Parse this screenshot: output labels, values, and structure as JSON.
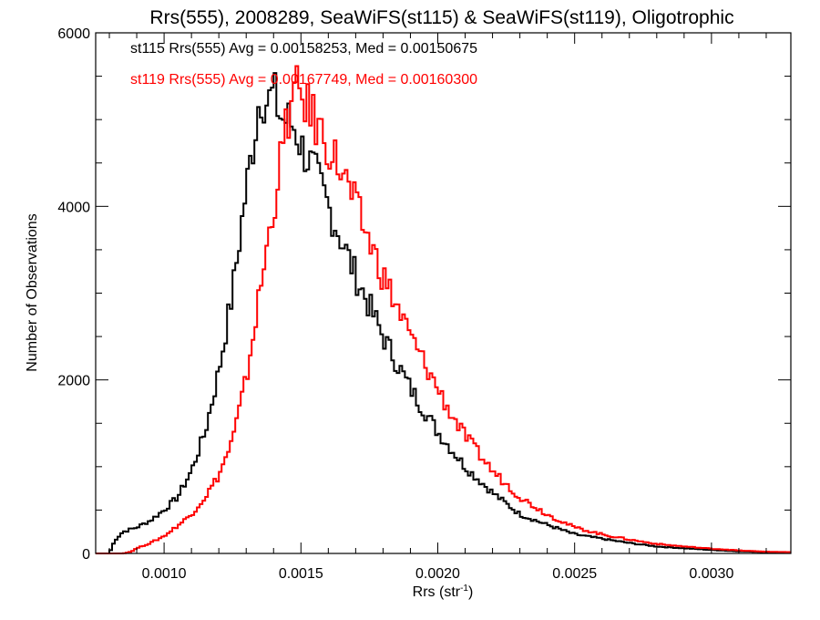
{
  "chart_data": {
    "type": "line",
    "subtype": "step-histogram",
    "title": "Rrs(555), 2008289, SeaWiFS(st115) & SeaWiFS(st119), Oligotrophic",
    "xlabel_main": "Rrs (str",
    "xlabel_sup": "-1",
    "xlabel_close": ")",
    "ylabel": "Number of Observations",
    "xlim": [
      0.00075,
      0.00329
    ],
    "ylim": [
      0,
      6000
    ],
    "x_major_ticks": [
      0.001,
      0.0015,
      0.002,
      0.0025,
      0.003
    ],
    "x_tick_labels": [
      "0.0010",
      "0.0015",
      "0.0020",
      "0.0025",
      "0.0030"
    ],
    "x_minor_step": 0.0001,
    "y_major_ticks": [
      0,
      2000,
      4000,
      6000
    ],
    "y_tick_labels": [
      "0",
      "2000",
      "4000",
      "6000"
    ],
    "y_minor_step": 500,
    "grid": false,
    "annotations": [
      {
        "text": "st115 Rrs(555) Avg = 0.00158253, Med = 0.00150675",
        "color": "#000000"
      },
      {
        "text": "st119 Rrs(555) Avg = 0.00167749, Med = 0.00160300",
        "color": "#ff0000"
      }
    ],
    "series": [
      {
        "name": "st115",
        "color": "#000000",
        "x": [
          0.00075,
          0.0008,
          0.00082,
          0.00085,
          0.0009,
          0.00095,
          0.001,
          0.00105,
          0.0011,
          0.00115,
          0.0012,
          0.00125,
          0.0013,
          0.00133,
          0.00135,
          0.00138,
          0.0014,
          0.00143,
          0.00145,
          0.00148,
          0.0015,
          0.00155,
          0.0016,
          0.00165,
          0.0017,
          0.00175,
          0.0018,
          0.00185,
          0.0019,
          0.00195,
          0.002,
          0.00205,
          0.0021,
          0.00215,
          0.0022,
          0.0023,
          0.0024,
          0.0025,
          0.0026,
          0.0027,
          0.0028,
          0.0029,
          0.003,
          0.0031,
          0.0032,
          0.00329
        ],
        "values": [
          0,
          0,
          150,
          250,
          300,
          380,
          500,
          650,
          950,
          1400,
          2100,
          3000,
          4200,
          4800,
          5300,
          5200,
          5300,
          5000,
          5000,
          4900,
          4700,
          4400,
          4000,
          3600,
          3200,
          2850,
          2500,
          2200,
          1900,
          1650,
          1400,
          1200,
          1000,
          850,
          700,
          450,
          330,
          220,
          170,
          120,
          80,
          60,
          40,
          25,
          15,
          10
        ]
      },
      {
        "name": "st119",
        "color": "#ff0000",
        "x": [
          0.00075,
          0.00085,
          0.00088,
          0.0009,
          0.00095,
          0.001,
          0.00105,
          0.0011,
          0.00115,
          0.0012,
          0.00125,
          0.0013,
          0.00135,
          0.0014,
          0.00143,
          0.00145,
          0.00148,
          0.0015,
          0.00153,
          0.00155,
          0.0016,
          0.00165,
          0.0017,
          0.00175,
          0.0018,
          0.00185,
          0.0019,
          0.00195,
          0.002,
          0.00205,
          0.0021,
          0.00215,
          0.0022,
          0.0023,
          0.0024,
          0.0025,
          0.0026,
          0.0027,
          0.0028,
          0.0029,
          0.003,
          0.0031,
          0.0032,
          0.00329
        ],
        "values": [
          0,
          0,
          20,
          60,
          120,
          200,
          320,
          450,
          650,
          900,
          1300,
          2000,
          3000,
          4000,
          4600,
          5000,
          5300,
          5300,
          5100,
          5000,
          4700,
          4400,
          4000,
          3600,
          3200,
          2850,
          2500,
          2200,
          1900,
          1600,
          1350,
          1150,
          950,
          650,
          450,
          300,
          220,
          160,
          110,
          80,
          55,
          35,
          20,
          15
        ]
      }
    ]
  }
}
